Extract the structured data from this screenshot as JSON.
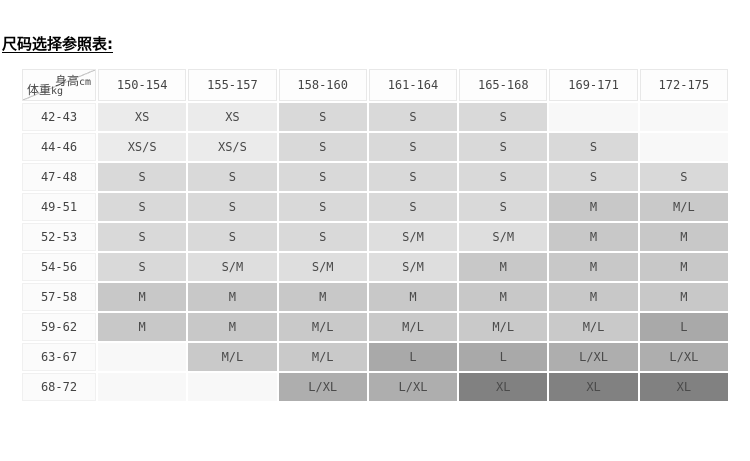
{
  "title": "尺码选择参照表:",
  "table": {
    "corner": {
      "height_label": "身高",
      "height_unit": "cm",
      "weight_label": "体重",
      "weight_unit": "kg"
    },
    "columns": [
      "150-154",
      "155-157",
      "158-160",
      "161-164",
      "165-168",
      "169-171",
      "172-175"
    ],
    "rows": [
      {
        "weight": "42-43",
        "sizes": [
          "XS",
          "XS",
          "S",
          "S",
          "S",
          "",
          ""
        ]
      },
      {
        "weight": "44-46",
        "sizes": [
          "XS/S",
          "XS/S",
          "S",
          "S",
          "S",
          "S",
          ""
        ]
      },
      {
        "weight": "47-48",
        "sizes": [
          "S",
          "S",
          "S",
          "S",
          "S",
          "S",
          "S"
        ]
      },
      {
        "weight": "49-51",
        "sizes": [
          "S",
          "S",
          "S",
          "S",
          "S",
          "M",
          "M/L"
        ]
      },
      {
        "weight": "52-53",
        "sizes": [
          "S",
          "S",
          "S",
          "S/M",
          "S/M",
          "M",
          "M"
        ]
      },
      {
        "weight": "54-56",
        "sizes": [
          "S",
          "S/M",
          "S/M",
          "S/M",
          "M",
          "M",
          "M"
        ]
      },
      {
        "weight": "57-58",
        "sizes": [
          "M",
          "M",
          "M",
          "M",
          "M",
          "M",
          "M"
        ]
      },
      {
        "weight": "59-62",
        "sizes": [
          "M",
          "M",
          "M/L",
          "M/L",
          "M/L",
          "M/L",
          "L"
        ]
      },
      {
        "weight": "63-67",
        "sizes": [
          "",
          "M/L",
          "M/L",
          "L",
          "L",
          "L/XL",
          "L/XL"
        ]
      },
      {
        "weight": "68-72",
        "sizes": [
          "",
          "",
          "L/XL",
          "L/XL",
          "XL",
          "XL",
          "XL"
        ]
      }
    ],
    "size_colors": {
      "XS": "#ebebeb",
      "XS/S": "#ebebeb",
      "S": "#d9d9d9",
      "S/M": "#dedede",
      "M": "#c8c8c8",
      "M/L": "#c9c9c9",
      "L": "#a9a9a9",
      "L/XL": "#aeaeae",
      "XL": "#818181"
    },
    "empty_color": "#f8f8f8"
  }
}
